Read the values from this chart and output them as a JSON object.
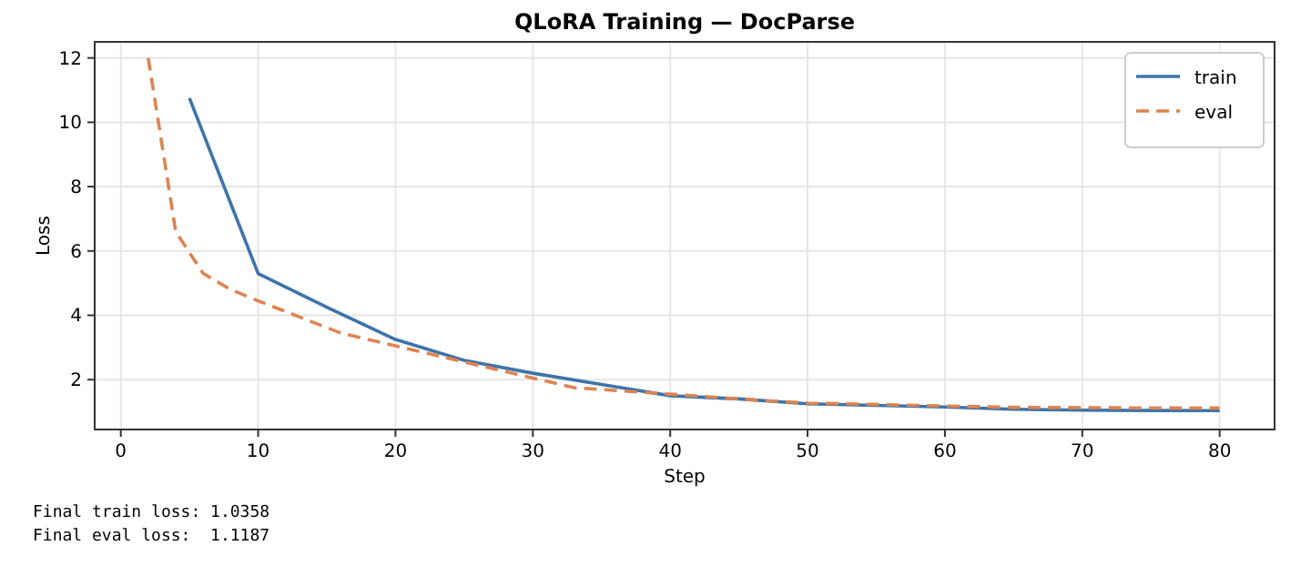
{
  "chart_data": {
    "type": "line",
    "title": "QLoRA Training — DocParse",
    "xlabel": "Step",
    "ylabel": "Loss",
    "xlim": [
      -1.9,
      84
    ],
    "xticks": [
      0,
      10,
      20,
      30,
      40,
      50,
      60,
      70,
      80
    ],
    "ylim": [
      0.45,
      12.5
    ],
    "yticks": [
      2,
      4,
      6,
      8,
      10,
      12
    ],
    "grid": true,
    "legend": "top right",
    "series": [
      {
        "name": "train",
        "color": "#3e74a8",
        "line_style": "solid",
        "x": [
          5,
          10,
          15,
          20,
          25,
          30,
          35,
          40,
          45,
          50,
          55,
          60,
          65,
          70,
          75,
          80
        ],
        "values": [
          10.75,
          5.3,
          4.25,
          3.25,
          2.6,
          2.2,
          1.85,
          1.5,
          1.4,
          1.25,
          1.2,
          1.15,
          1.08,
          1.05,
          1.04,
          1.0358
        ]
      },
      {
        "name": "eval",
        "color": "#dd8452",
        "line_style": "dashed",
        "x": [
          2,
          4,
          6,
          8,
          10,
          16,
          20,
          25,
          30,
          33,
          40,
          45,
          50,
          55,
          60,
          65,
          70,
          75,
          80
        ],
        "values": [
          12,
          6.6,
          5.3,
          4.8,
          4.45,
          3.45,
          3.05,
          2.55,
          2.05,
          1.75,
          1.55,
          1.4,
          1.27,
          1.23,
          1.18,
          1.14,
          1.13,
          1.12,
          1.1187
        ]
      }
    ],
    "annotations": [
      "Final train loss: 1.0358",
      "Final eval loss:  1.1187"
    ]
  }
}
